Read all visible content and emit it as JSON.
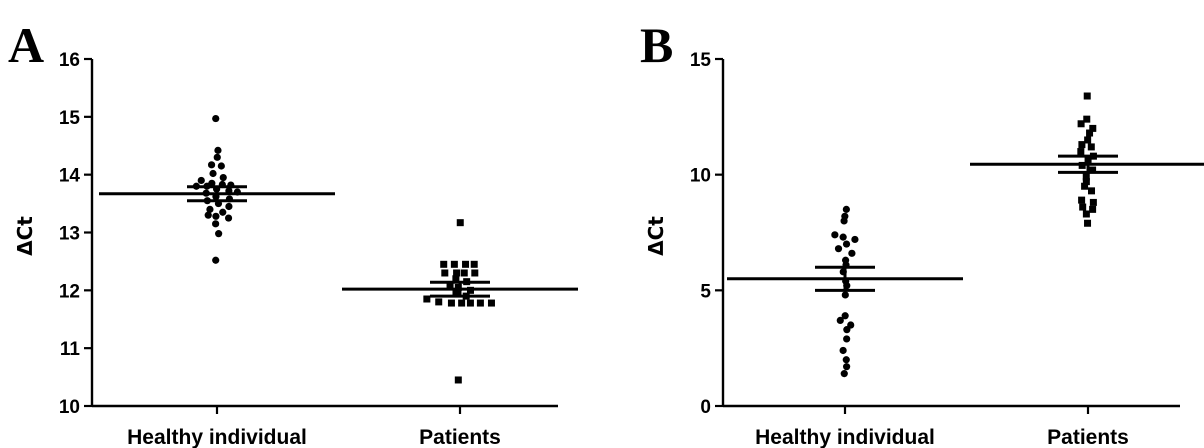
{
  "chart_data": [
    {
      "panel": "A",
      "type": "scatter",
      "ylabel": "ΔCt",
      "ylim": [
        10,
        16
      ],
      "yticks": [
        10,
        11,
        12,
        13,
        14,
        15,
        16
      ],
      "categories": [
        "Healthy individual",
        "Patients"
      ],
      "groups": [
        {
          "name": "Healthy individual",
          "marker": "circle",
          "mean": 13.67,
          "sem": 0.12,
          "values": [
            14.97,
            14.42,
            14.3,
            14.17,
            14.15,
            14.02,
            13.95,
            13.9,
            13.85,
            13.83,
            13.82,
            13.8,
            13.8,
            13.75,
            13.72,
            13.7,
            13.68,
            13.62,
            13.58,
            13.55,
            13.5,
            13.45,
            13.4,
            13.35,
            13.3,
            13.28,
            13.25,
            13.15,
            12.98,
            12.52
          ]
        },
        {
          "name": "Patients",
          "marker": "square",
          "mean": 12.02,
          "sem": 0.12,
          "values": [
            13.17,
            12.45,
            12.45,
            12.45,
            12.45,
            12.3,
            12.3,
            12.3,
            12.3,
            12.2,
            12.15,
            12.1,
            12.05,
            12.0,
            11.95,
            11.9,
            11.85,
            11.8,
            11.78,
            11.78,
            11.78,
            11.78,
            11.78,
            10.45
          ]
        }
      ]
    },
    {
      "panel": "B",
      "type": "scatter",
      "ylabel": "ΔCt",
      "ylim": [
        0,
        15
      ],
      "yticks": [
        0,
        5,
        10,
        15
      ],
      "categories": [
        "Healthy individual",
        "Patients"
      ],
      "groups": [
        {
          "name": "Healthy individual",
          "marker": "circle",
          "mean": 5.5,
          "sem": 0.5,
          "values": [
            8.5,
            8.2,
            8.0,
            7.4,
            7.3,
            7.2,
            7.0,
            6.8,
            6.6,
            6.3,
            6.1,
            5.8,
            5.4,
            5.2,
            4.8,
            3.9,
            3.7,
            3.5,
            3.3,
            2.9,
            2.4,
            2.0,
            1.7,
            1.4
          ]
        },
        {
          "name": "Patients",
          "marker": "square",
          "mean": 10.45,
          "sem": 0.35,
          "values": [
            13.4,
            12.4,
            12.2,
            12.0,
            11.8,
            11.5,
            11.3,
            11.2,
            11.0,
            10.8,
            10.6,
            10.4,
            10.2,
            9.9,
            9.7,
            9.5,
            9.3,
            8.9,
            8.8,
            8.6,
            8.5,
            8.3,
            7.9
          ]
        }
      ]
    }
  ]
}
